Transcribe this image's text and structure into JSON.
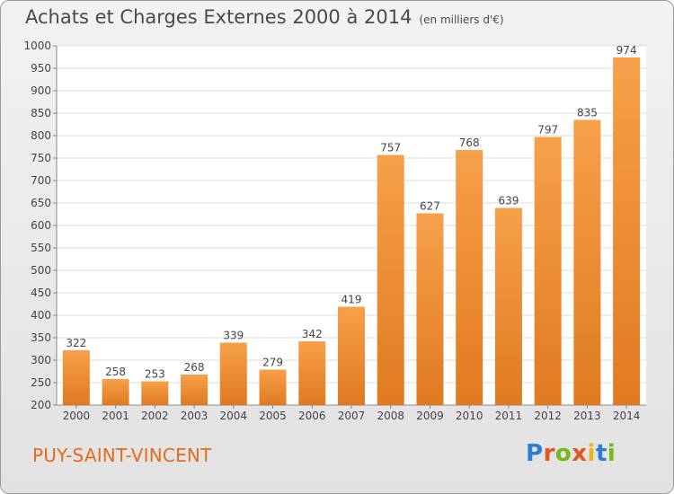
{
  "header": {
    "title": "Achats et Charges Externes 2000 à 2014",
    "unit": "(en milliers d'€)"
  },
  "footer": {
    "commune": "PUY-SAINT-VINCENT",
    "logo": [
      "P",
      "r",
      "o",
      "x",
      "i",
      "t",
      "i"
    ]
  },
  "colors": {
    "bar_light": "#f7a04a",
    "bar_dark": "#e07a20",
    "commune": "#e66b1a",
    "logo": [
      "#2a7fd4",
      "#e8541e",
      "#7ab51d",
      "#e8541e",
      "#f2b21b",
      "#2a7fd4",
      "#7ab51d"
    ]
  },
  "chart_data": {
    "type": "bar",
    "title": "Achats et Charges Externes 2000 à 2014",
    "categories": [
      "2000",
      "2001",
      "2002",
      "2003",
      "2004",
      "2005",
      "2006",
      "2007",
      "2008",
      "2009",
      "2010",
      "2011",
      "2012",
      "2013",
      "2014"
    ],
    "values": [
      322,
      258,
      253,
      268,
      339,
      279,
      342,
      419,
      757,
      627,
      768,
      639,
      797,
      835,
      974
    ],
    "ylim": [
      200,
      1000
    ],
    "yticks": [
      200,
      250,
      300,
      350,
      400,
      450,
      500,
      550,
      600,
      650,
      700,
      750,
      800,
      850,
      900,
      950,
      1000
    ],
    "grid": true
  }
}
